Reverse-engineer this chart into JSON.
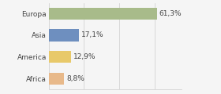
{
  "categories": [
    "Europa",
    "Asia",
    "America",
    "Africa"
  ],
  "values": [
    61.3,
    17.1,
    12.9,
    8.8
  ],
  "labels": [
    "61,3%",
    "17,1%",
    "12,9%",
    "8,8%"
  ],
  "bar_colors": [
    "#a8bb8a",
    "#6e8fbf",
    "#e8c96a",
    "#e8b98a"
  ],
  "background_color": "#f5f5f5",
  "xlim": [
    0,
    75
  ],
  "bar_height": 0.55,
  "label_fontsize": 6.5,
  "category_fontsize": 6.5,
  "grid_ticks": [
    0,
    20,
    40,
    60
  ]
}
